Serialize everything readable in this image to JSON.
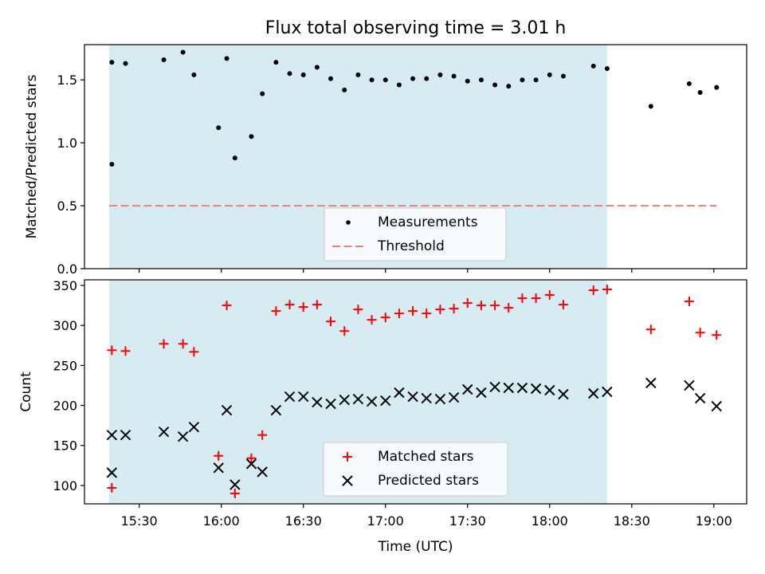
{
  "chart_data": [
    {
      "type": "scatter",
      "title": "Flux total observing time = 3.01 h",
      "xlabel": "",
      "ylabel": "Matched/Predicted stars",
      "ylim": [
        0.0,
        1.78
      ],
      "yticks": [
        "0.0",
        "0.5",
        "1.0",
        "1.5"
      ],
      "ytick_values": [
        0.0,
        0.5,
        1.0,
        1.5
      ],
      "shaded_span": [
        "15:19",
        "18:21"
      ],
      "threshold": {
        "name": "Threshold",
        "value": 0.5,
        "x": [
          "15:19",
          "19:01"
        ],
        "color": "#f08080"
      },
      "series": [
        {
          "name": "Measurements",
          "color": "#000000",
          "points": [
            [
              "15:20",
              0.83
            ],
            [
              "15:20",
              1.64
            ],
            [
              "15:25",
              1.63
            ],
            [
              "15:39",
              1.66
            ],
            [
              "15:46",
              1.72
            ],
            [
              "15:50",
              1.54
            ],
            [
              "15:59",
              1.12
            ],
            [
              "16:02",
              1.67
            ],
            [
              "16:05",
              0.88
            ],
            [
              "16:11",
              1.05
            ],
            [
              "16:15",
              1.39
            ],
            [
              "16:20",
              1.64
            ],
            [
              "16:25",
              1.55
            ],
            [
              "16:30",
              1.54
            ],
            [
              "16:35",
              1.6
            ],
            [
              "16:40",
              1.51
            ],
            [
              "16:45",
              1.42
            ],
            [
              "16:50",
              1.54
            ],
            [
              "16:55",
              1.5
            ],
            [
              "17:00",
              1.5
            ],
            [
              "17:05",
              1.46
            ],
            [
              "17:10",
              1.51
            ],
            [
              "17:15",
              1.51
            ],
            [
              "17:20",
              1.54
            ],
            [
              "17:25",
              1.53
            ],
            [
              "17:30",
              1.49
            ],
            [
              "17:35",
              1.5
            ],
            [
              "17:40",
              1.46
            ],
            [
              "17:45",
              1.45
            ],
            [
              "17:50",
              1.5
            ],
            [
              "17:55",
              1.5
            ],
            [
              "18:00",
              1.54
            ],
            [
              "18:05",
              1.53
            ],
            [
              "18:16",
              1.61
            ],
            [
              "18:21",
              1.59
            ],
            [
              "18:37",
              1.29
            ],
            [
              "18:51",
              1.47
            ],
            [
              "18:55",
              1.4
            ],
            [
              "19:01",
              1.44
            ]
          ]
        }
      ],
      "legend": {
        "placement": "lower center",
        "entries": [
          "Measurements",
          "Threshold"
        ]
      }
    },
    {
      "type": "scatter",
      "title": "",
      "xlabel": "Time (UTC)",
      "ylabel": "Count",
      "ylim": [
        77,
        357
      ],
      "yticks": [
        "100",
        "150",
        "200",
        "250",
        "300",
        "350"
      ],
      "ytick_values": [
        100,
        150,
        200,
        250,
        300,
        350
      ],
      "xticks": [
        "15:30",
        "16:00",
        "16:30",
        "17:00",
        "17:30",
        "18:00",
        "18:30",
        "19:00"
      ],
      "xlim": [
        "15:10",
        "19:12"
      ],
      "shaded_span": [
        "15:19",
        "18:21"
      ],
      "series": [
        {
          "name": "Matched stars",
          "marker": "plus",
          "color": "#ff0000",
          "points": [
            [
              "15:20",
              97
            ],
            [
              "15:20",
              269
            ],
            [
              "15:25",
              268
            ],
            [
              "15:39",
              277
            ],
            [
              "15:46",
              277
            ],
            [
              "15:50",
              267
            ],
            [
              "15:59",
              137
            ],
            [
              "16:02",
              325
            ],
            [
              "16:05",
              90
            ],
            [
              "16:11",
              134
            ],
            [
              "16:15",
              163
            ],
            [
              "16:20",
              318
            ],
            [
              "16:25",
              326
            ],
            [
              "16:30",
              323
            ],
            [
              "16:35",
              326
            ],
            [
              "16:40",
              305
            ],
            [
              "16:45",
              293
            ],
            [
              "16:50",
              320
            ],
            [
              "16:55",
              307
            ],
            [
              "17:00",
              310
            ],
            [
              "17:05",
              315
            ],
            [
              "17:10",
              318
            ],
            [
              "17:15",
              315
            ],
            [
              "17:20",
              320
            ],
            [
              "17:25",
              321
            ],
            [
              "17:30",
              328
            ],
            [
              "17:35",
              325
            ],
            [
              "17:40",
              325
            ],
            [
              "17:45",
              322
            ],
            [
              "17:50",
              334
            ],
            [
              "17:55",
              334
            ],
            [
              "18:00",
              338
            ],
            [
              "18:05",
              326
            ],
            [
              "18:16",
              344
            ],
            [
              "18:21",
              345
            ],
            [
              "18:37",
              295
            ],
            [
              "18:51",
              330
            ],
            [
              "18:55",
              291
            ],
            [
              "19:01",
              288
            ]
          ]
        },
        {
          "name": "Predicted stars",
          "marker": "x",
          "color": "#000000",
          "points": [
            [
              "15:20",
              116
            ],
            [
              "15:20",
              163
            ],
            [
              "15:25",
              163
            ],
            [
              "15:39",
              167
            ],
            [
              "15:46",
              161
            ],
            [
              "15:50",
              173
            ],
            [
              "15:59",
              122
            ],
            [
              "16:02",
              194
            ],
            [
              "16:05",
              101
            ],
            [
              "16:11",
              127
            ],
            [
              "16:15",
              117
            ],
            [
              "16:20",
              194
            ],
            [
              "16:25",
              211
            ],
            [
              "16:30",
              211
            ],
            [
              "16:35",
              204
            ],
            [
              "16:40",
              202
            ],
            [
              "16:45",
              207
            ],
            [
              "16:50",
              208
            ],
            [
              "16:55",
              205
            ],
            [
              "17:00",
              206
            ],
            [
              "17:05",
              216
            ],
            [
              "17:10",
              211
            ],
            [
              "17:15",
              209
            ],
            [
              "17:20",
              208
            ],
            [
              "17:25",
              210
            ],
            [
              "17:30",
              220
            ],
            [
              "17:35",
              216
            ],
            [
              "17:40",
              223
            ],
            [
              "17:45",
              222
            ],
            [
              "17:50",
              222
            ],
            [
              "17:55",
              221
            ],
            [
              "18:00",
              219
            ],
            [
              "18:05",
              214
            ],
            [
              "18:16",
              215
            ],
            [
              "18:21",
              217
            ],
            [
              "18:37",
              228
            ],
            [
              "18:51",
              225
            ],
            [
              "18:55",
              209
            ],
            [
              "19:01",
              199
            ]
          ]
        }
      ],
      "legend": {
        "placement": "lower center",
        "entries": [
          "Matched stars",
          "Predicted stars"
        ]
      }
    }
  ]
}
